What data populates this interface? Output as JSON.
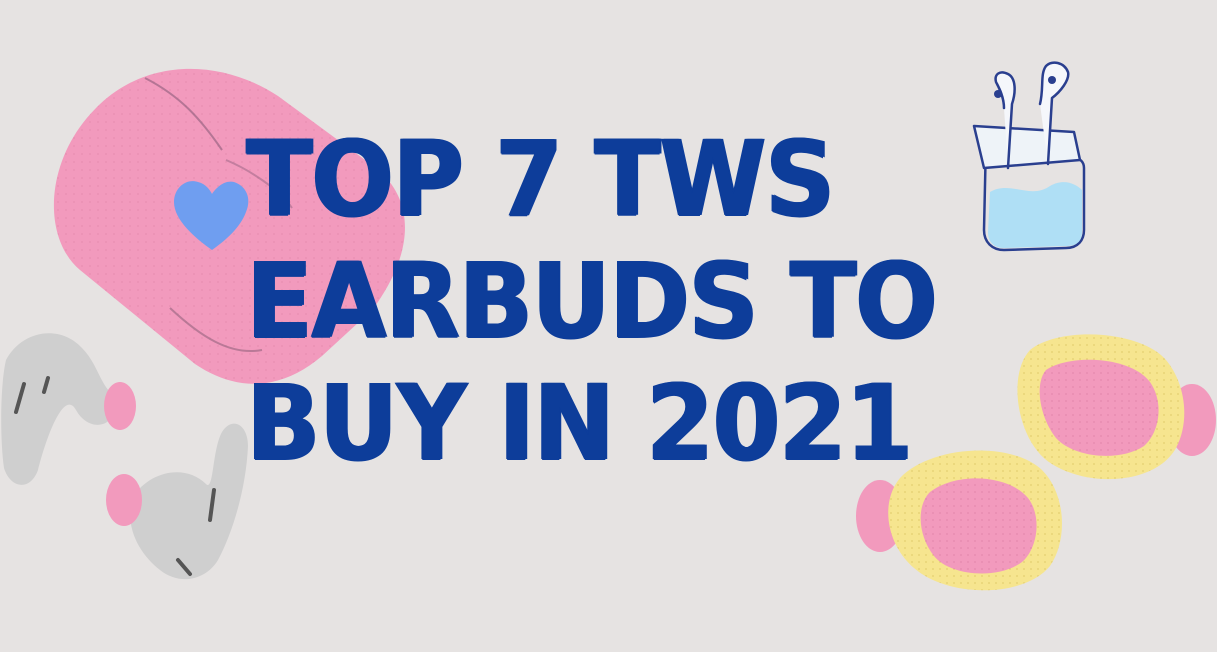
{
  "headline": {
    "line1": "TOP 7 TWS",
    "line2": "EARBUDS TO",
    "line3": "BUY IN 2021"
  },
  "colors": {
    "background": "#e6e3e2",
    "headline": "#0d3d9a",
    "pink": "#f29abd",
    "pink_dark": "#e2a0b7",
    "blue_heart": "#6f9ef0",
    "gray": "#cfcfcf",
    "yellow": "#f6e58f",
    "outline": "#2a3f8f",
    "water": "#a9def7"
  },
  "icons": [
    "earbuds-case-icon",
    "heart-icon",
    "airpods-icon",
    "gray-earbud-icon",
    "yellow-earbud-icon"
  ]
}
